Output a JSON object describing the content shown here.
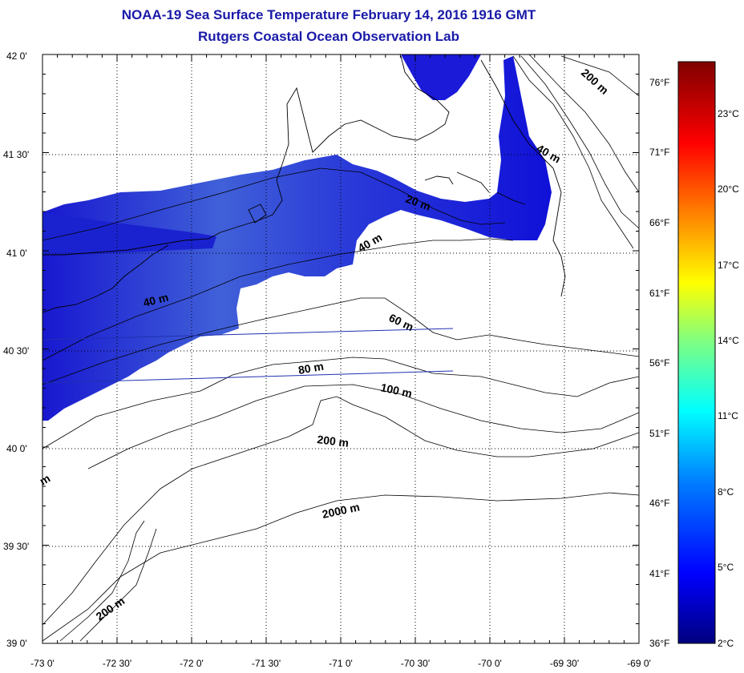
{
  "header": {
    "title": "NOAA-19 Sea Surface Temperature February 14, 2016 1916 GMT",
    "subtitle": "Rutgers Coastal Ocean Observation Lab"
  },
  "axes": {
    "lat_labels": [
      "42 0'",
      "41 30'",
      "41 0'",
      "40 30'",
      "40 0'",
      "39 30'",
      "39 0'"
    ],
    "lon_labels": [
      "-73 0'",
      "-72 30'",
      "-72 0'",
      "-71 30'",
      "-71 0'",
      "-70 30'",
      "-70 0'",
      "-69 30'",
      "-69 0'"
    ]
  },
  "contours": {
    "labels": [
      "200 m",
      "40 m",
      "20 m",
      "40 m",
      "40 m",
      "60 m",
      "80 m",
      "100 m",
      "200 m",
      "2000 m",
      "200 m",
      "m"
    ]
  },
  "colorbar": {
    "fahrenheit": [
      "76°F",
      "71°F",
      "66°F",
      "61°F",
      "56°F",
      "51°F",
      "46°F",
      "41°F",
      "36°F"
    ],
    "celsius": [
      "23°C",
      "20°C",
      "17°C",
      "14°C",
      "11°C",
      "8°C",
      "5°C",
      "2°C"
    ],
    "colors": {
      "top": "#7f0000",
      "red": "#ff0000",
      "orange": "#ff8000",
      "yellow": "#ffff00",
      "green": "#80ff80",
      "cyan": "#00ffff",
      "blue_light": "#0080ff",
      "blue": "#0000ff",
      "bottom": "#00007f"
    }
  },
  "sst": {
    "water_color_dark": "#1414d8",
    "water_color_light": "#3a5ad8"
  }
}
